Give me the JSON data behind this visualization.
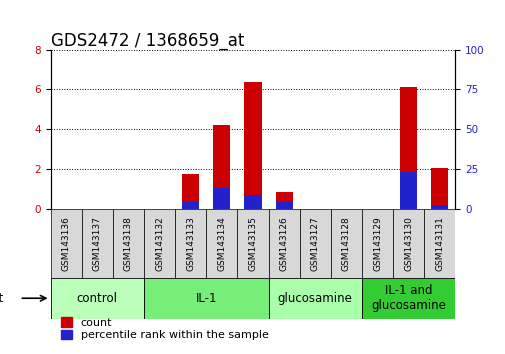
{
  "title": "GDS2472 / 1368659_at",
  "samples": [
    "GSM143136",
    "GSM143137",
    "GSM143138",
    "GSM143132",
    "GSM143133",
    "GSM143134",
    "GSM143135",
    "GSM143126",
    "GSM143127",
    "GSM143128",
    "GSM143129",
    "GSM143130",
    "GSM143131"
  ],
  "count_values": [
    0.0,
    0.0,
    0.0,
    0.0,
    1.75,
    4.2,
    6.35,
    0.85,
    0.0,
    0.0,
    0.0,
    6.1,
    2.05
  ],
  "percentile_values": [
    0.0,
    0.0,
    0.0,
    0.0,
    4.0,
    13.0,
    8.5,
    4.0,
    0.0,
    0.0,
    0.0,
    23.0,
    2.5
  ],
  "groups": [
    {
      "label": "control",
      "start": 0,
      "end": 3,
      "color": "#bbffbb"
    },
    {
      "label": "IL-1",
      "start": 3,
      "end": 7,
      "color": "#66ee66"
    },
    {
      "label": "glucosamine",
      "start": 7,
      "end": 10,
      "color": "#aaffaa"
    },
    {
      "label": "IL-1 and\nglucosamine",
      "start": 10,
      "end": 13,
      "color": "#44dd44"
    }
  ],
  "bar_color_count": "#cc0000",
  "bar_color_percentile": "#2222cc",
  "ylim_left": [
    0,
    8
  ],
  "ylim_right": [
    0,
    100
  ],
  "yticks_left": [
    0,
    2,
    4,
    6,
    8
  ],
  "yticks_right": [
    0,
    25,
    50,
    75,
    100
  ],
  "bar_width": 0.55,
  "background_color": "#ffffff",
  "title_fontsize": 12,
  "tick_fontsize": 7.5,
  "group_label_fontsize": 8.5,
  "legend_fontsize": 8
}
